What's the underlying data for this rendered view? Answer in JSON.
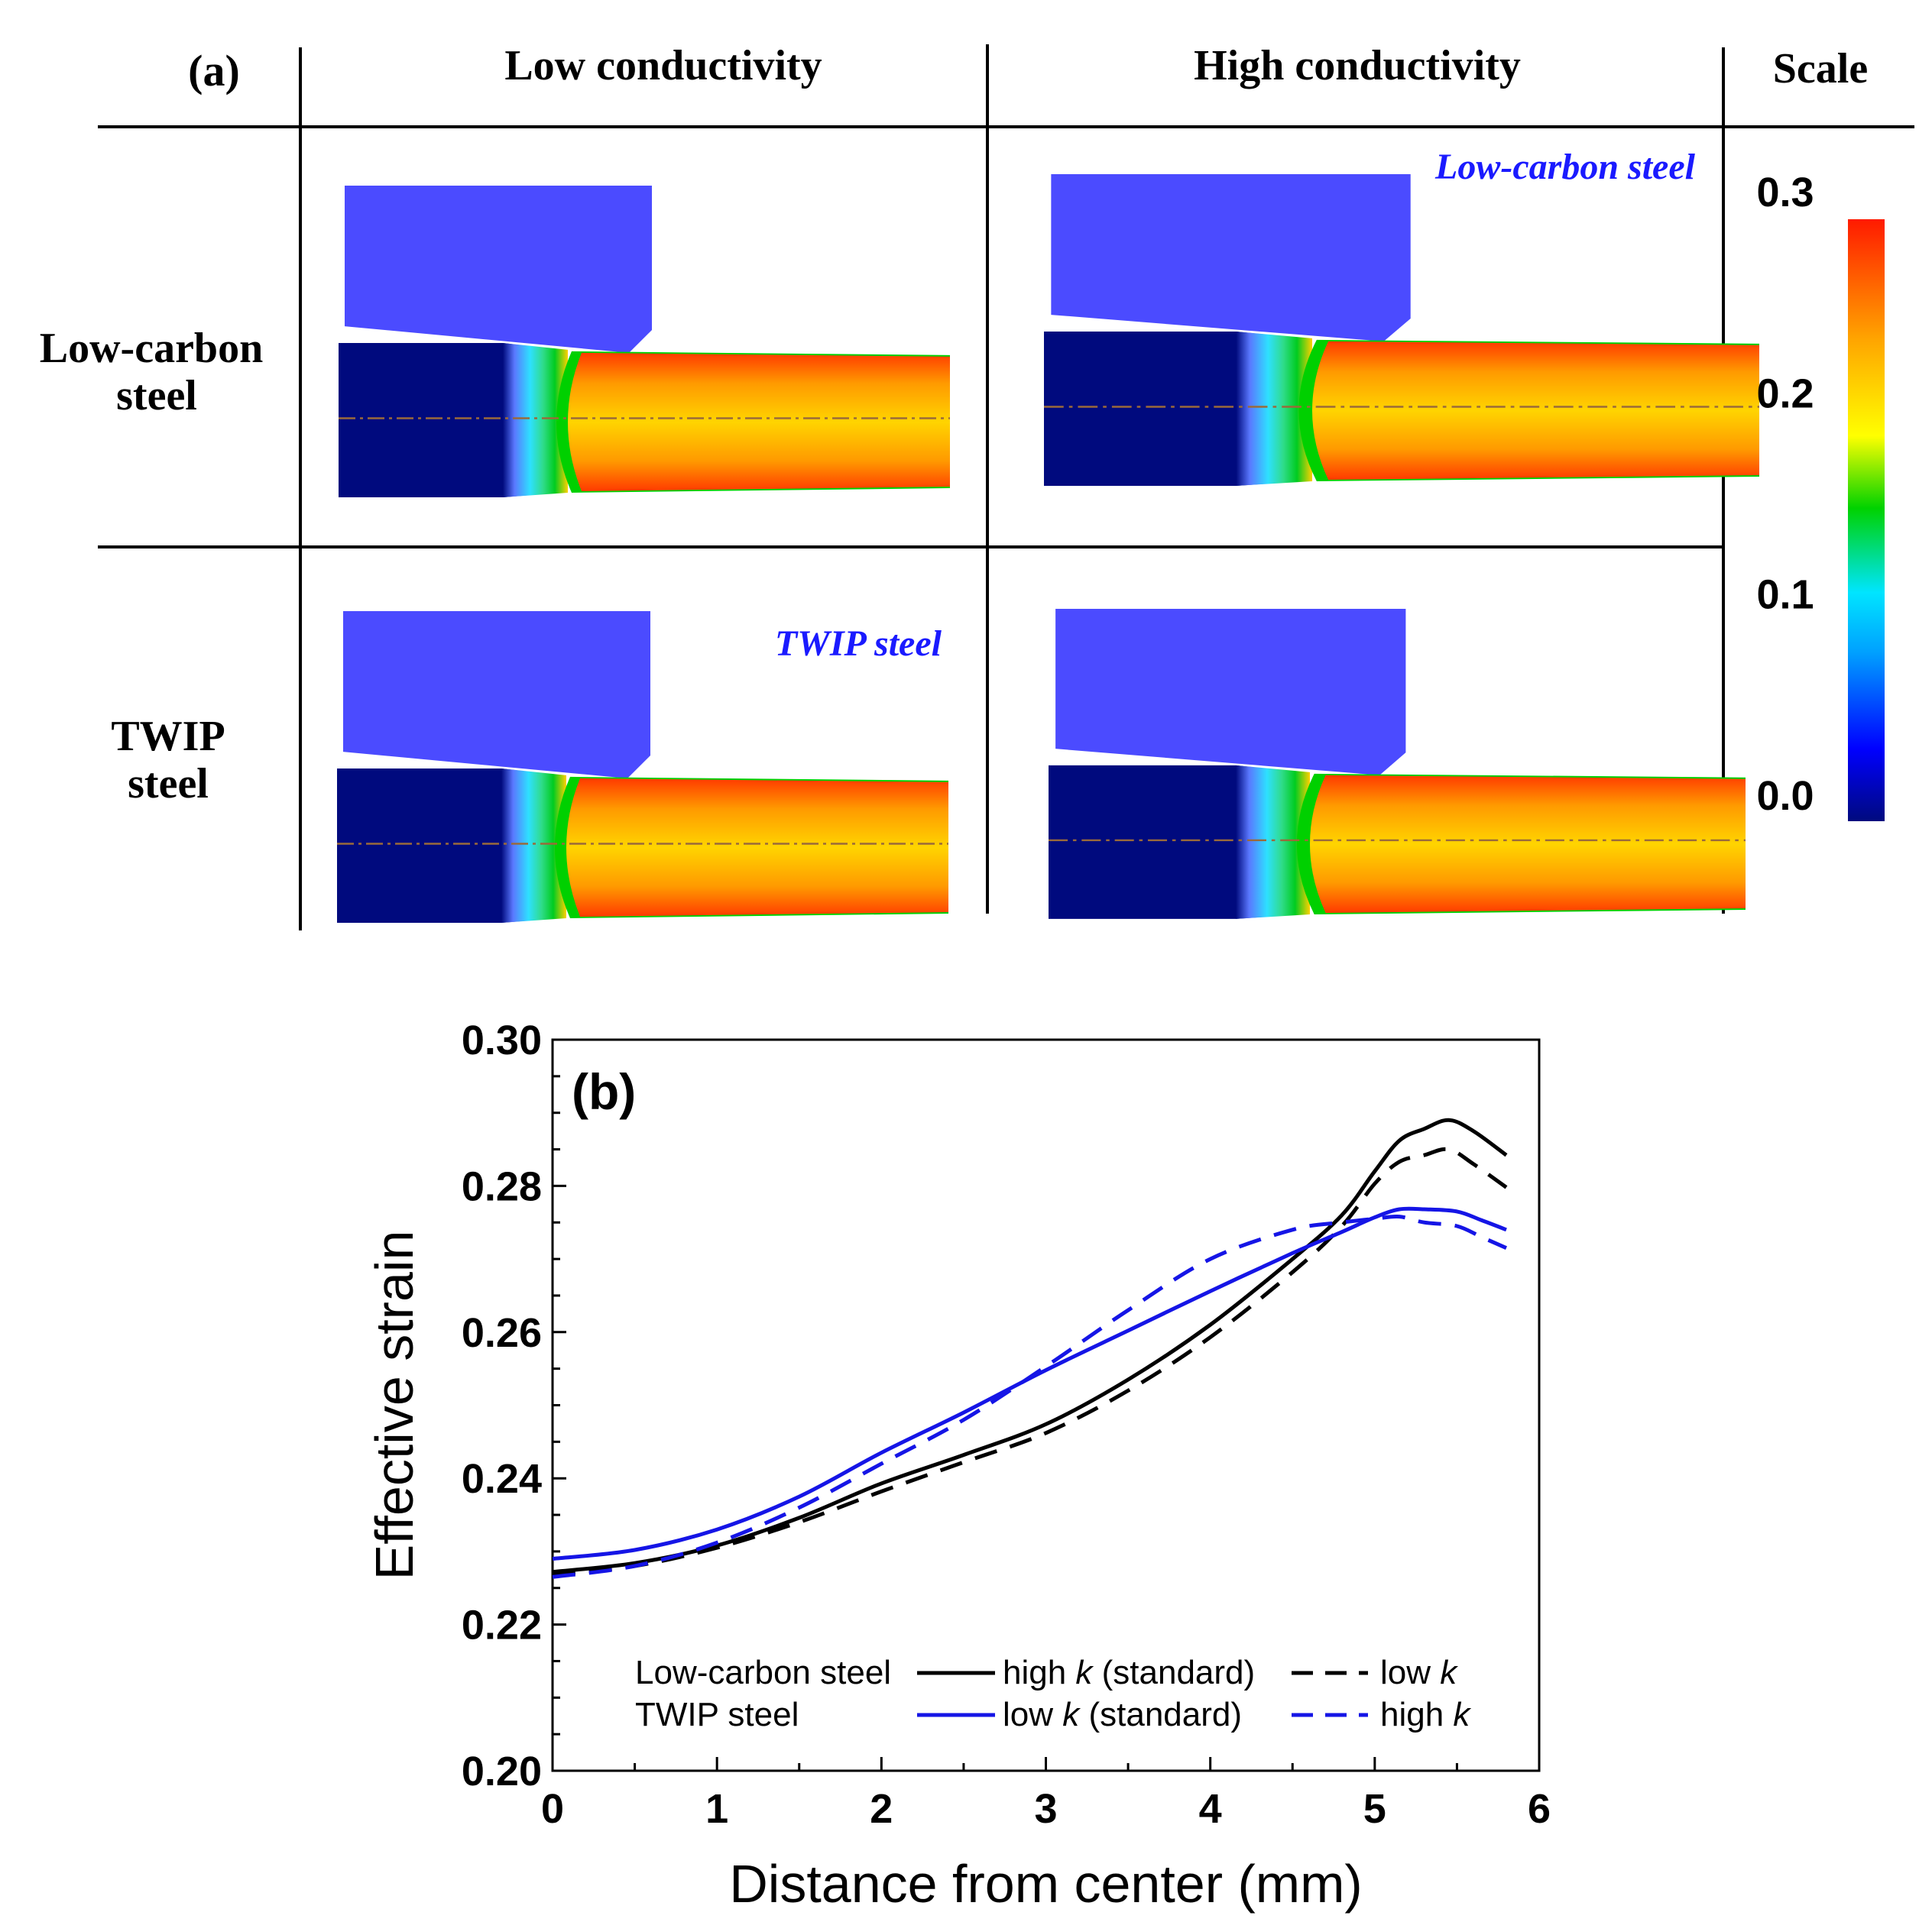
{
  "panel_a": {
    "label": "(a)",
    "columns": [
      "Low conductivity",
      "High conductivity"
    ],
    "scale_header": "Scale",
    "rows": [
      {
        "line1": "Low-carbon",
        "line2": "steel"
      },
      {
        "line1": "TWIP",
        "line2": "steel"
      }
    ],
    "annotations": {
      "low_carbon": "Low-carbon steel",
      "twip": "TWIP steel"
    },
    "scale": {
      "ticks": [
        "0.3",
        "0.2",
        "0.1",
        "0.0"
      ],
      "tick_values": [
        0.3,
        0.2,
        0.1,
        0.0
      ],
      "min": 0.0,
      "max": 0.3
    },
    "colors": {
      "die": "#4b4bff",
      "undeformed": "#000a7e",
      "label_blue": "#1a1aff",
      "colormap": [
        "#000a7e",
        "#0000ff",
        "#00e5ff",
        "#00d200",
        "#ffff00",
        "#ffa500",
        "#ff1a00"
      ]
    }
  },
  "chart_data": {
    "type": "line",
    "panel_label": "(b)",
    "xlabel": "Distance from center (mm)",
    "ylabel": "Effective strain",
    "xlim": [
      0,
      6
    ],
    "ylim": [
      0.2,
      0.3
    ],
    "xticks": [
      0,
      1,
      2,
      3,
      4,
      5,
      6
    ],
    "xtick_labels": [
      "0",
      "1",
      "2",
      "3",
      "4",
      "5",
      "6"
    ],
    "yticks": [
      0.2,
      0.22,
      0.24,
      0.26,
      0.28,
      0.3
    ],
    "ytick_labels": [
      "0.20",
      "0.22",
      "0.24",
      "0.26",
      "0.28",
      "0.30"
    ],
    "legend": {
      "row_labels": [
        "Low-carbon steel",
        "TWIP steel"
      ],
      "entries": [
        {
          "text": "high ",
          "k": "k",
          "suffix": " (standard)"
        },
        {
          "text": "low ",
          "k": "k",
          "suffix": ""
        },
        {
          "text": "low ",
          "k": "k",
          "suffix": " (standard)"
        },
        {
          "text": "high ",
          "k": "k",
          "suffix": ""
        }
      ]
    },
    "series": [
      {
        "name": "Low-carbon steel high k (standard)",
        "color": "#000000",
        "dash": "solid",
        "x": [
          0,
          0.5,
          1,
          1.5,
          2,
          2.5,
          3,
          3.5,
          4,
          4.5,
          4.8,
          5.0,
          5.15,
          5.3,
          5.45,
          5.6,
          5.8
        ],
        "y": [
          0.2272,
          0.2284,
          0.2308,
          0.2346,
          0.2393,
          0.2432,
          0.2474,
          0.2535,
          0.261,
          0.27,
          0.276,
          0.282,
          0.2862,
          0.2878,
          0.289,
          0.2875,
          0.2842
        ]
      },
      {
        "name": "Low-carbon steel low k",
        "color": "#000000",
        "dash": "dashed",
        "x": [
          0,
          0.5,
          1,
          1.5,
          2,
          2.5,
          3,
          3.5,
          4,
          4.5,
          4.8,
          5.0,
          5.15,
          5.3,
          5.45,
          5.6,
          5.8
        ],
        "y": [
          0.2268,
          0.228,
          0.2305,
          0.234,
          0.2382,
          0.2422,
          0.2462,
          0.252,
          0.2593,
          0.2682,
          0.2745,
          0.2803,
          0.2833,
          0.2842,
          0.285,
          0.283,
          0.2798
        ]
      },
      {
        "name": "TWIP steel low k (standard)",
        "color": "#1515e6",
        "dash": "solid",
        "x": [
          0,
          0.5,
          1,
          1.5,
          2,
          2.5,
          3,
          3.5,
          4,
          4.5,
          4.8,
          5.0,
          5.15,
          5.3,
          5.5,
          5.65,
          5.8
        ],
        "y": [
          0.229,
          0.2302,
          0.233,
          0.2375,
          0.2435,
          0.249,
          0.2548,
          0.2602,
          0.2656,
          0.2708,
          0.2737,
          0.2757,
          0.2768,
          0.2768,
          0.2765,
          0.2753,
          0.274
        ]
      },
      {
        "name": "TWIP steel high k",
        "color": "#1515e6",
        "dash": "dashed",
        "x": [
          0,
          0.5,
          1,
          1.5,
          2,
          2.5,
          3,
          3.5,
          4,
          4.5,
          4.8,
          5.0,
          5.15,
          5.3,
          5.5,
          5.65,
          5.8
        ],
        "y": [
          0.2265,
          0.228,
          0.2312,
          0.236,
          0.242,
          0.248,
          0.2553,
          0.263,
          0.27,
          0.274,
          0.275,
          0.2755,
          0.2758,
          0.275,
          0.2745,
          0.273,
          0.2715
        ]
      }
    ]
  }
}
